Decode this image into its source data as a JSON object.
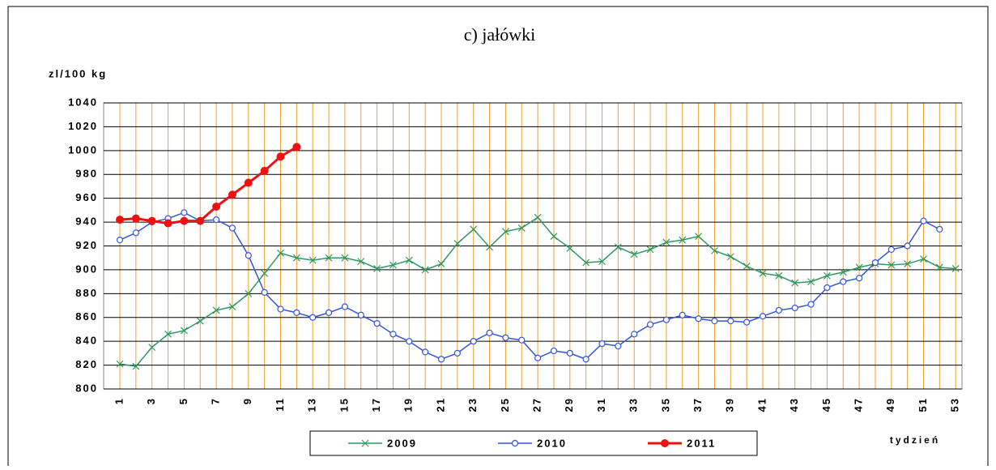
{
  "chart_data": {
    "type": "line",
    "title": "c) jałówki",
    "y_label": "zl/100 kg",
    "x_label": "tydzień",
    "categories": [
      1,
      null,
      3,
      null,
      5,
      null,
      7,
      null,
      9,
      null,
      11,
      null,
      13,
      null,
      15,
      null,
      17,
      null,
      19,
      null,
      21,
      null,
      23,
      null,
      25,
      null,
      27,
      null,
      29,
      null,
      31,
      null,
      33,
      null,
      35,
      null,
      37,
      null,
      39,
      null,
      41,
      null,
      43,
      null,
      45,
      null,
      47,
      null,
      49,
      null,
      51,
      null,
      53
    ],
    "series": [
      {
        "name": "2009",
        "color": "#2e9960",
        "marker": "x",
        "values": [
          821,
          819,
          835,
          846,
          849,
          857,
          866,
          869,
          880,
          897,
          914,
          910,
          908,
          910,
          910,
          907,
          901,
          904,
          908,
          900,
          905,
          922,
          934,
          919,
          932,
          935,
          944,
          928,
          918,
          906,
          907,
          919,
          913,
          917,
          923,
          925,
          928,
          916,
          911,
          903,
          897,
          895,
          889,
          890,
          895,
          898,
          902,
          905,
          904,
          905,
          909,
          902,
          901
        ]
      },
      {
        "name": "2010",
        "color": "#3355dd",
        "marker": "circle",
        "values": [
          925,
          931,
          940,
          943,
          948,
          941,
          942,
          935,
          912,
          881,
          867,
          864,
          860,
          864,
          869,
          862,
          855,
          846,
          840,
          831,
          825,
          830,
          840,
          847,
          843,
          841,
          826,
          832,
          830,
          825,
          838,
          836,
          846,
          854,
          858,
          862,
          859,
          857,
          857,
          856,
          861,
          866,
          868,
          871,
          885,
          890,
          893,
          906,
          917,
          920,
          941,
          934,
          null
        ]
      },
      {
        "name": "2011",
        "color": "#ee1111",
        "marker": "dot",
        "values": [
          942,
          943,
          941,
          939,
          941,
          941,
          953,
          963,
          973,
          983,
          995,
          1003,
          null,
          null,
          null,
          null,
          null,
          null,
          null,
          null,
          null,
          null,
          null,
          null,
          null,
          null,
          null,
          null,
          null,
          null,
          null,
          null,
          null,
          null,
          null,
          null,
          null,
          null,
          null,
          null,
          null,
          null,
          null,
          null,
          null,
          null,
          null,
          null,
          null,
          null,
          null,
          null,
          null
        ]
      }
    ],
    "ylim": [
      800,
      1040
    ],
    "yticks": [
      800,
      820,
      840,
      860,
      880,
      900,
      920,
      940,
      960,
      980,
      1000,
      1020,
      1040
    ],
    "grid": true,
    "grid_color": "#f0a030"
  }
}
